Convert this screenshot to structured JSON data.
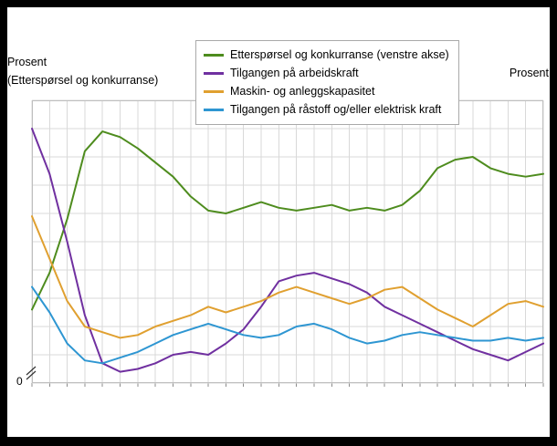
{
  "labels": {
    "left_axis_title_line1": "Prosent",
    "left_axis_title_line2": "(Etterspørsel og konkurranse)",
    "right_axis_title": "Prosent",
    "zero_label": "0"
  },
  "colors": {
    "panel_background": "#ffffff",
    "frame_background": "#000000",
    "gridline": "#d9d9d9",
    "plot_border": "#bfbfbf"
  },
  "chart_data": {
    "type": "line",
    "title": "",
    "xlabel": "",
    "ylabel_left": "Prosent (Etterspørsel og konkurranse)",
    "ylabel_right": "Prosent",
    "ylim": [
      0,
      100
    ],
    "grid": true,
    "x_gridline_count": 30,
    "y_gridline_count": 11,
    "legend_position": "top",
    "axis_break_bottom_left": true,
    "x_tick_labels_visible": false,
    "series": [
      {
        "name": "Etterspørsel og konkurranse (venstre akse)",
        "color": "#4e8c1e",
        "axis": "left",
        "values": [
          26,
          39,
          58,
          82,
          89,
          87,
          83,
          78,
          73,
          66,
          61,
          60,
          62,
          64,
          62,
          61,
          62,
          63,
          61,
          62,
          61,
          63,
          68,
          76,
          79,
          80,
          76,
          74,
          73,
          74
        ]
      },
      {
        "name": "Tilgangen på arbeidskraft",
        "color": "#7030a0",
        "axis": "right",
        "values": [
          90,
          74,
          50,
          24,
          7,
          4,
          5,
          7,
          10,
          11,
          10,
          14,
          19,
          27,
          36,
          38,
          39,
          37,
          35,
          32,
          27,
          24,
          21,
          18,
          15,
          12,
          10,
          8,
          11,
          14
        ]
      },
      {
        "name": "Maskin- og anleggskapasitet",
        "color": "#e0a030",
        "axis": "right",
        "values": [
          59,
          44,
          29,
          20,
          18,
          16,
          17,
          20,
          22,
          24,
          27,
          25,
          27,
          29,
          32,
          34,
          32,
          30,
          28,
          30,
          33,
          34,
          30,
          26,
          23,
          20,
          24,
          28,
          29,
          27
        ]
      },
      {
        "name": "Tilgangen på råstoff og/eller elektrisk kraft",
        "color": "#2e96d2",
        "axis": "right",
        "values": [
          34,
          25,
          14,
          8,
          7,
          9,
          11,
          14,
          17,
          19,
          21,
          19,
          17,
          16,
          17,
          20,
          21,
          19,
          16,
          14,
          15,
          17,
          18,
          17,
          16,
          15,
          15,
          16,
          15,
          16
        ]
      }
    ]
  }
}
